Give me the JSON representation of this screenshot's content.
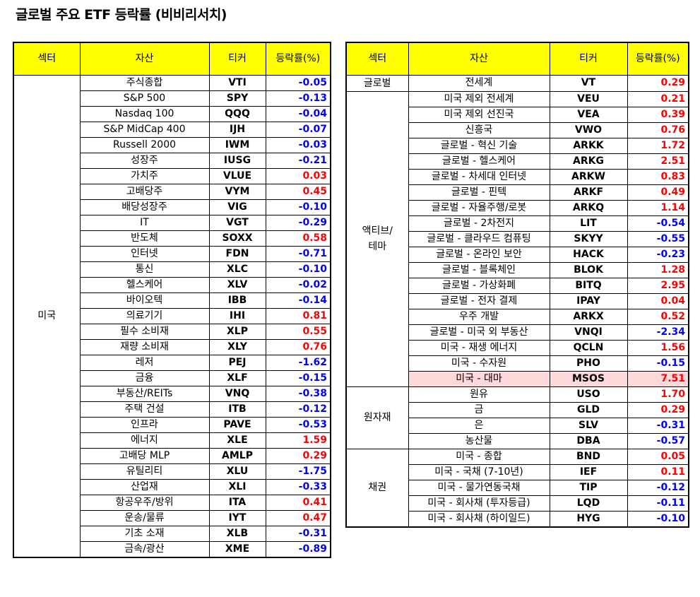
{
  "title": "글로벌 주요 ETF 등락률 (비비리서치)",
  "colors": {
    "header_bg": "#ffff00",
    "positive": "#ff0000",
    "negative": "#0000ff",
    "highlight": "#ffd9d9"
  },
  "headers": {
    "sector": "섹터",
    "asset": "자산",
    "ticker": "티커",
    "change": "등락률(%)"
  },
  "left": {
    "groups": [
      {
        "sector": "미국",
        "rows": [
          {
            "asset": "주식종합",
            "ticker": "VTI",
            "change": "-0.05"
          },
          {
            "asset": "S&P 500",
            "ticker": "SPY",
            "change": "-0.13"
          },
          {
            "asset": "Nasdaq 100",
            "ticker": "QQQ",
            "change": "-0.04"
          },
          {
            "asset": "S&P MidCap 400",
            "ticker": "IJH",
            "change": "-0.07"
          },
          {
            "asset": "Russell 2000",
            "ticker": "IWM",
            "change": "-0.03"
          },
          {
            "asset": "성장주",
            "ticker": "IUSG",
            "change": "-0.21"
          },
          {
            "asset": "가치주",
            "ticker": "VLUE",
            "change": "0.03"
          },
          {
            "asset": "고배당주",
            "ticker": "VYM",
            "change": "0.45"
          },
          {
            "asset": "배당성장주",
            "ticker": "VIG",
            "change": "-0.10"
          },
          {
            "asset": "IT",
            "ticker": "VGT",
            "change": "-0.29"
          },
          {
            "asset": "반도체",
            "ticker": "SOXX",
            "change": "0.58"
          },
          {
            "asset": "인터넷",
            "ticker": "FDN",
            "change": "-0.71"
          },
          {
            "asset": "통신",
            "ticker": "XLC",
            "change": "-0.10"
          },
          {
            "asset": "헬스케어",
            "ticker": "XLV",
            "change": "-0.02"
          },
          {
            "asset": "바이오텍",
            "ticker": "IBB",
            "change": "-0.14"
          },
          {
            "asset": "의료기기",
            "ticker": "IHI",
            "change": "0.81"
          },
          {
            "asset": "필수 소비재",
            "ticker": "XLP",
            "change": "0.55"
          },
          {
            "asset": "재량 소비재",
            "ticker": "XLY",
            "change": "0.76"
          },
          {
            "asset": "레저",
            "ticker": "PEJ",
            "change": "-1.62"
          },
          {
            "asset": "금융",
            "ticker": "XLF",
            "change": "-0.15"
          },
          {
            "asset": "부동산/REITs",
            "ticker": "VNQ",
            "change": "-0.38"
          },
          {
            "asset": "주택 건설",
            "ticker": "ITB",
            "change": "-0.12"
          },
          {
            "asset": "인프라",
            "ticker": "PAVE",
            "change": "-0.53"
          },
          {
            "asset": "에너지",
            "ticker": "XLE",
            "change": "1.59"
          },
          {
            "asset": "고배당 MLP",
            "ticker": "AMLP",
            "change": "0.29"
          },
          {
            "asset": "유틸리티",
            "ticker": "XLU",
            "change": "-1.75"
          },
          {
            "asset": "산업재",
            "ticker": "XLI",
            "change": "-0.33"
          },
          {
            "asset": "항공우주/방위",
            "ticker": "ITA",
            "change": "0.41"
          },
          {
            "asset": "운송/물류",
            "ticker": "IYT",
            "change": "0.47"
          },
          {
            "asset": "기초 소재",
            "ticker": "XLB",
            "change": "-0.31"
          },
          {
            "asset": "금속/광산",
            "ticker": "XME",
            "change": "-0.89"
          }
        ]
      }
    ]
  },
  "right": {
    "groups": [
      {
        "sector": "글로벌",
        "rows": [
          {
            "asset": "전세계",
            "ticker": "VT",
            "change": "0.29"
          }
        ]
      },
      {
        "sector": "액티브/\n테마",
        "rows": [
          {
            "asset": "미국 제외 전세계",
            "ticker": "VEU",
            "change": "0.21"
          },
          {
            "asset": "미국 제외 선진국",
            "ticker": "VEA",
            "change": "0.39"
          },
          {
            "asset": "신흥국",
            "ticker": "VWO",
            "change": "0.76"
          },
          {
            "asset": "글로벌 - 혁신 기술",
            "ticker": "ARKK",
            "change": "1.72"
          },
          {
            "asset": "글로벌 - 헬스케어",
            "ticker": "ARKG",
            "change": "2.51"
          },
          {
            "asset": "글로벌 - 차세대 인터넷",
            "ticker": "ARKW",
            "change": "0.83"
          },
          {
            "asset": "글로벌 - 핀텍",
            "ticker": "ARKF",
            "change": "0.49"
          },
          {
            "asset": "글로벌 - 자율주행/로봇",
            "ticker": "ARKQ",
            "change": "1.14"
          },
          {
            "asset": "글로벌 - 2차전지",
            "ticker": "LIT",
            "change": "-0.54"
          },
          {
            "asset": "글로벌 - 클라우드 컴퓨팅",
            "ticker": "SKYY",
            "change": "-0.55"
          },
          {
            "asset": "글로벌 - 온라인 보안",
            "ticker": "HACK",
            "change": "-0.23"
          },
          {
            "asset": "글로벌 - 블록체인",
            "ticker": "BLOK",
            "change": "1.28"
          },
          {
            "asset": "글로벌 - 가상화폐",
            "ticker": "BITQ",
            "change": "2.95"
          },
          {
            "asset": "글로벌 - 전자 결제",
            "ticker": "IPAY",
            "change": "0.04"
          },
          {
            "asset": "우주 개발",
            "ticker": "ARKX",
            "change": "0.52"
          },
          {
            "asset": "글로벌 - 미국 외 부동산",
            "ticker": "VNQI",
            "change": "-2.34"
          },
          {
            "asset": "미국 - 재생 에너지",
            "ticker": "QCLN",
            "change": "1.56"
          },
          {
            "asset": "미국 - 수자원",
            "ticker": "PHO",
            "change": "-0.15"
          },
          {
            "asset": "미국 - 대마",
            "ticker": "MSOS",
            "change": "7.51",
            "highlight": true
          }
        ]
      },
      {
        "sector": "원자재",
        "rows": [
          {
            "asset": "원유",
            "ticker": "USO",
            "change": "1.70"
          },
          {
            "asset": "금",
            "ticker": "GLD",
            "change": "0.29"
          },
          {
            "asset": "은",
            "ticker": "SLV",
            "change": "-0.31"
          },
          {
            "asset": "농산물",
            "ticker": "DBA",
            "change": "-0.57"
          }
        ]
      },
      {
        "sector": "채권",
        "rows": [
          {
            "asset": "미국 - 종합",
            "ticker": "BND",
            "change": "0.05"
          },
          {
            "asset": "미국 - 국채 (7-10년)",
            "ticker": "IEF",
            "change": "0.11"
          },
          {
            "asset": "미국 - 물가연동국채",
            "ticker": "TIP",
            "change": "-0.12"
          },
          {
            "asset": "미국 - 회사채 (투자등급)",
            "ticker": "LQD",
            "change": "-0.11"
          },
          {
            "asset": "미국 - 회사채 (하이일드)",
            "ticker": "HYG",
            "change": "-0.10"
          }
        ]
      }
    ]
  }
}
